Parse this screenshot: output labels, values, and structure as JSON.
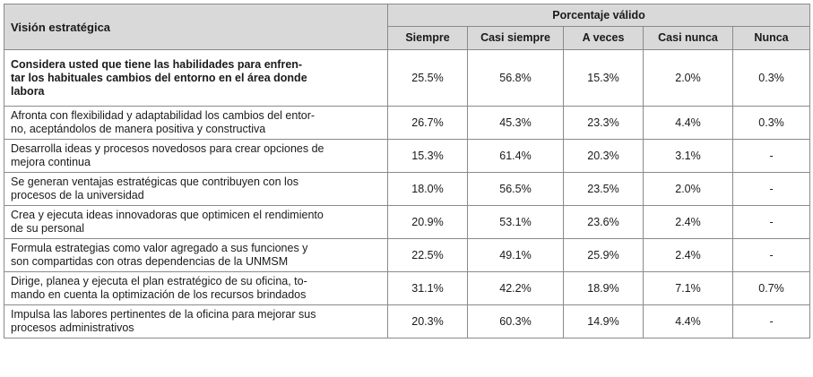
{
  "header": {
    "row_label": "Visión estratégica",
    "group_label": "Porcentaje válido",
    "columns": [
      "Siempre",
      "Casi siempre",
      "A veces",
      "Casi nunca",
      "Nunca"
    ]
  },
  "rows": [
    {
      "label": "Considera usted que tiene las habilidades para enfren-\ntar los habituales cambios del entorno en el área donde\nlabora",
      "values": [
        "25.5%",
        "56.8%",
        "15.3%",
        "2.0%",
        "0.3%"
      ]
    },
    {
      "label": "Afronta con flexibilidad y adaptabilidad los cambios del entor-\nno, aceptándolos de manera positiva y constructiva",
      "values": [
        "26.7%",
        "45.3%",
        "23.3%",
        "4.4%",
        "0.3%"
      ]
    },
    {
      "label": "Desarrolla ideas y procesos novedosos para crear opciones de\nmejora continua",
      "values": [
        "15.3%",
        "61.4%",
        "20.3%",
        "3.1%",
        "-"
      ]
    },
    {
      "label": "Se generan ventajas estratégicas que contribuyen con los\nprocesos de la universidad",
      "values": [
        "18.0%",
        "56.5%",
        "23.5%",
        "2.0%",
        "-"
      ]
    },
    {
      "label": "Crea y ejecuta ideas innovadoras que optimicen el rendimiento\nde su personal",
      "values": [
        "20.9%",
        "53.1%",
        "23.6%",
        "2.4%",
        "-"
      ]
    },
    {
      "label": "Formula estrategias como valor agregado a sus funciones y\nson compartidas con otras dependencias de la UNMSM",
      "values": [
        "22.5%",
        "49.1%",
        "25.9%",
        "2.4%",
        "-"
      ]
    },
    {
      "label": "Dirige, planea y ejecuta el plan estratégico de su oficina, to-\nmando en cuenta la optimización de los recursos brindados",
      "values": [
        "31.1%",
        "42.2%",
        "18.9%",
        "7.1%",
        "0.7%"
      ]
    },
    {
      "label": "Impulsa las labores pertinentes de la oficina para mejorar sus\nprocesos administrativos",
      "values": [
        "20.3%",
        "60.3%",
        "14.9%",
        "4.4%",
        "-"
      ]
    }
  ]
}
